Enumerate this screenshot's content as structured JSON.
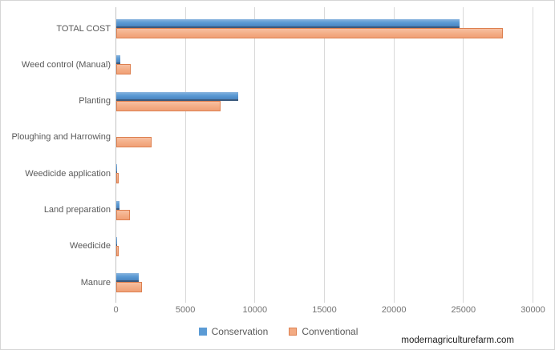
{
  "chart_data": {
    "type": "bar",
    "orientation": "horizontal",
    "title": "",
    "categories": [
      "TOTAL COST",
      "Weed control (Manual)",
      "Planting",
      "Ploughing and Harrowing",
      "Weedicide application",
      "Land preparation",
      "Weedicide",
      "Manure"
    ],
    "series": [
      {
        "name": "Conservation",
        "color": "#5b9bd5",
        "values": [
          24700,
          300,
          8750,
          0,
          60,
          230,
          50,
          1600
        ]
      },
      {
        "name": "Conventional",
        "color": "#f3ab83",
        "border_color": "#dd8050",
        "values": [
          27800,
          1050,
          7500,
          2550,
          150,
          1000,
          150,
          1850
        ]
      }
    ],
    "xticks": [
      0,
      5000,
      10000,
      15000,
      20000,
      25000,
      30000
    ],
    "xlim": [
      0,
      30000
    ],
    "grid": true,
    "legend_position": "bottom"
  },
  "watermark": "modernagriculturefarm.com",
  "colors": {
    "gridline": "#d9d9d9",
    "axis_line": "#c3c3c3",
    "label_text": "#595959",
    "tick_text": "#737373",
    "background": "#ffffff"
  }
}
